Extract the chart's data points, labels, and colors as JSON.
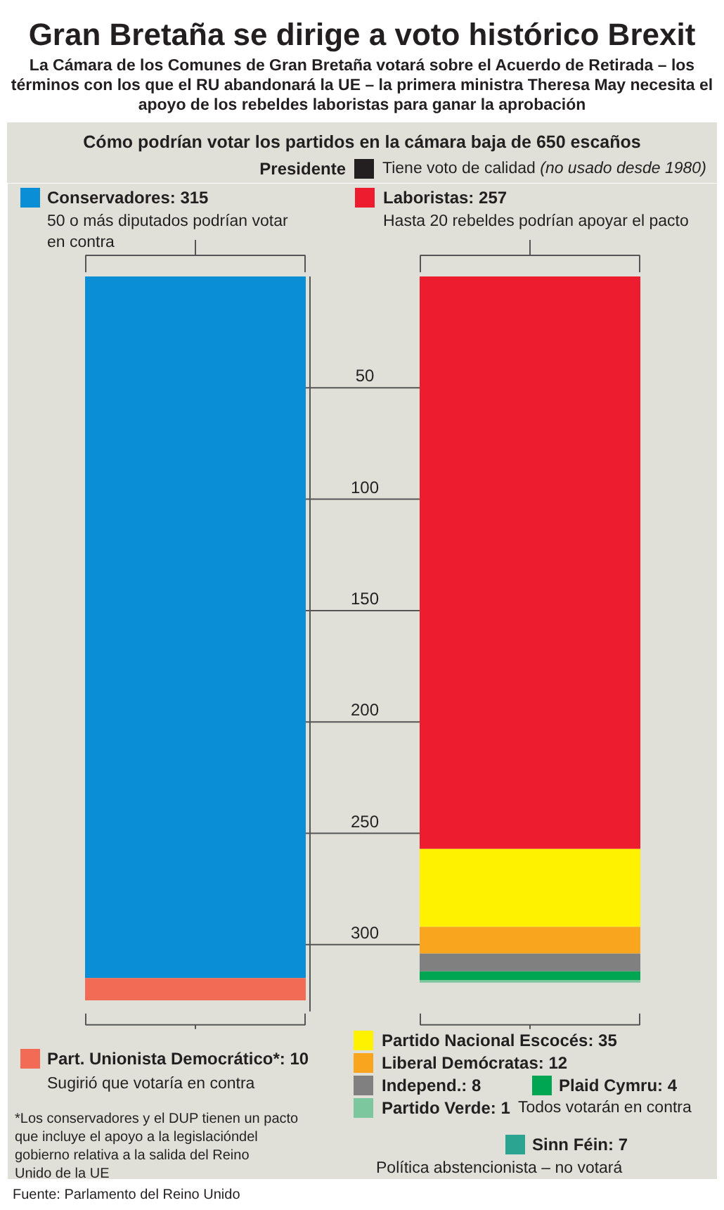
{
  "chart_data": {
    "type": "bar",
    "stacked": true,
    "title": "Gran Bretaña se dirige a voto histórico Brexit",
    "subtitle": "La Cámara de los Comunes de Gran Bretaña votará sobre el Acuerdo de Retirada – los términos con los que el RU abandonará la UE – la primera ministra Theresa May necesita el apoyo de los rebeldes laboristas para ganar la aprobación",
    "categories": [
      null,
      null
    ],
    "series": [
      {
        "name": "Conservadores: 315",
        "color": "#0a8fd6",
        "values": [
          315,
          null
        ]
      },
      {
        "name": "Part. Unionista Democrático*: 10",
        "color": "#f26b55",
        "values": [
          10,
          null
        ]
      },
      {
        "name": "Laboristas: 257",
        "color": "#ed1c2e",
        "values": [
          null,
          257
        ]
      },
      {
        "name": "Partido Nacional Escocés: 35",
        "color": "#fff200",
        "values": [
          null,
          35
        ]
      },
      {
        "name": "Liberal Demócratas: 12",
        "color": "#f9a51e",
        "values": [
          null,
          12
        ]
      },
      {
        "name": "Independ.: 8",
        "color": "#808080",
        "values": [
          null,
          8
        ]
      },
      {
        "name": "Plaid Cymru: 4",
        "color": "#00a651",
        "values": [
          null,
          4
        ]
      },
      {
        "name": "Partido Verde: 1",
        "color": "#7cc79d",
        "values": [
          null,
          1
        ]
      },
      {
        "name": "Sinn Féin: 7",
        "color": "#2ba592",
        "values": [
          null,
          null
        ]
      }
    ],
    "ylim": [
      330,
      0
    ],
    "yticks": [
      50,
      100,
      150,
      200,
      250,
      300
    ],
    "grid": "y",
    "legend": "bottom right",
    "annotations": [
      "Cómo podrían votar los partidos en la cámara baja de 650 escaños",
      "Presidente",
      "Tiene voto de calidad",
      "(no usado desde 1980)",
      "50 o más diputados podrían votar en contra",
      "Hasta 20 rebeldes podrían apoyar el pacto",
      "Sugirió que votaría en contra",
      "Todos votarán en contra",
      "Política abstencionista – no votará",
      "*Los conservadores y el DUP tienen un pacto que incluye el apoyo a la legislacióndel gobierno relativa a la salida del Reino Unido de la UE",
      "Fuente: Parlamento del Reino Unido"
    ]
  }
}
